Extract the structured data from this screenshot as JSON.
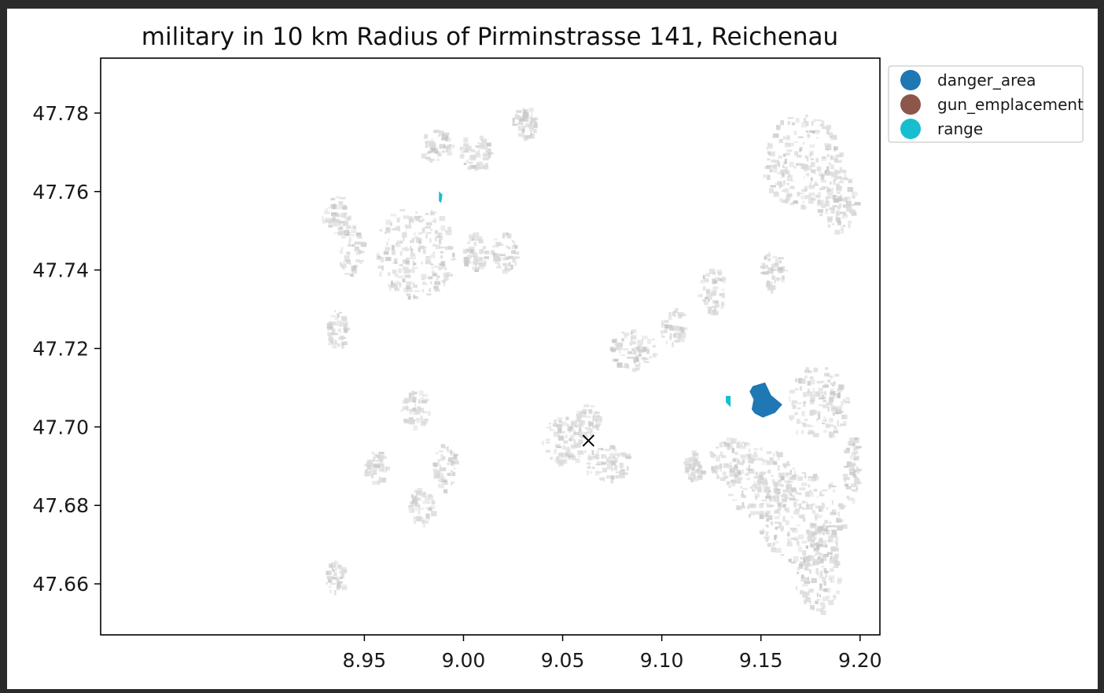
{
  "map": {
    "title": "military in 10 km Radius of Pirminstrasse 141, Reichenau",
    "type": "geographic map (scatter of polygons)",
    "x_axis": {
      "range": [
        8.817,
        9.21
      ],
      "ticks": [
        {
          "value": 8.95,
          "label": "8.95"
        },
        {
          "value": 9.0,
          "label": "9.00"
        },
        {
          "value": 9.05,
          "label": "9.05"
        },
        {
          "value": 9.1,
          "label": "9.10"
        },
        {
          "value": 9.15,
          "label": "9.15"
        },
        {
          "value": 9.2,
          "label": "9.20"
        }
      ]
    },
    "y_axis": {
      "range": [
        47.647,
        47.794
      ],
      "ticks": [
        {
          "value": 47.66,
          "label": "47.66"
        },
        {
          "value": 47.68,
          "label": "47.68"
        },
        {
          "value": 47.7,
          "label": "47.70"
        },
        {
          "value": 47.72,
          "label": "47.72"
        },
        {
          "value": 47.74,
          "label": "47.74"
        },
        {
          "value": 47.76,
          "label": "47.76"
        },
        {
          "value": 47.78,
          "label": "47.78"
        }
      ]
    },
    "legend": {
      "placement": "outside right, top",
      "items": [
        {
          "label": "danger_area",
          "color": "#1f77b4"
        },
        {
          "label": "gun_emplacement",
          "color": "#8c564b"
        },
        {
          "label": "range",
          "color": "#17becf"
        }
      ]
    },
    "center_marker": {
      "lon": 9.063,
      "lat": 47.6965,
      "symbol": "x",
      "color": "#000000"
    },
    "military_features": [
      {
        "category": "danger_area",
        "color": "#1f77b4",
        "polygon": [
          [
            9.146,
            47.7103
          ],
          [
            9.152,
            47.7112
          ],
          [
            9.155,
            47.708
          ],
          [
            9.1605,
            47.7057
          ],
          [
            9.157,
            47.7037
          ],
          [
            9.151,
            47.7025
          ],
          [
            9.147,
            47.7035
          ],
          [
            9.1455,
            47.7045
          ],
          [
            9.1465,
            47.707
          ],
          [
            9.1445,
            47.709
          ]
        ]
      },
      {
        "category": "range",
        "color": "#17becf",
        "polygon": [
          [
            9.1325,
            47.7078
          ],
          [
            9.1345,
            47.7078
          ],
          [
            9.1345,
            47.7053
          ],
          [
            9.1325,
            47.7063
          ]
        ]
      },
      {
        "category": "range",
        "color": "#17becf",
        "polygon": [
          [
            8.9878,
            47.7598
          ],
          [
            8.9892,
            47.7592
          ],
          [
            8.9886,
            47.7573
          ],
          [
            8.9878,
            47.7576
          ]
        ]
      }
    ],
    "building_areas_color": "#d9d9d9",
    "building_clusters": [
      {
        "lon": 9.051,
        "lat": 47.697,
        "rx": 0.012,
        "ry": 0.006
      },
      {
        "lon": 9.072,
        "lat": 47.691,
        "rx": 0.012,
        "ry": 0.0045
      },
      {
        "lon": 9.062,
        "lat": 47.702,
        "rx": 0.006,
        "ry": 0.004
      },
      {
        "lon": 9.15,
        "lat": 47.686,
        "rx": 0.018,
        "ry": 0.009
      },
      {
        "lon": 9.17,
        "lat": 47.677,
        "rx": 0.022,
        "ry": 0.012
      },
      {
        "lon": 9.178,
        "lat": 47.665,
        "rx": 0.012,
        "ry": 0.012
      },
      {
        "lon": 9.135,
        "lat": 47.692,
        "rx": 0.012,
        "ry": 0.006
      },
      {
        "lon": 9.178,
        "lat": 47.706,
        "rx": 0.015,
        "ry": 0.01
      },
      {
        "lon": 8.975,
        "lat": 47.745,
        "rx": 0.02,
        "ry": 0.012
      },
      {
        "lon": 8.943,
        "lat": 47.745,
        "rx": 0.006,
        "ry": 0.007
      },
      {
        "lon": 8.935,
        "lat": 47.754,
        "rx": 0.007,
        "ry": 0.005
      },
      {
        "lon": 9.005,
        "lat": 47.745,
        "rx": 0.006,
        "ry": 0.005
      },
      {
        "lon": 9.17,
        "lat": 47.768,
        "rx": 0.02,
        "ry": 0.012
      },
      {
        "lon": 9.188,
        "lat": 47.758,
        "rx": 0.01,
        "ry": 0.008
      },
      {
        "lon": 9.005,
        "lat": 47.77,
        "rx": 0.008,
        "ry": 0.005
      },
      {
        "lon": 9.02,
        "lat": 47.745,
        "rx": 0.007,
        "ry": 0.005
      },
      {
        "lon": 9.085,
        "lat": 47.72,
        "rx": 0.012,
        "ry": 0.005
      },
      {
        "lon": 9.125,
        "lat": 47.735,
        "rx": 0.007,
        "ry": 0.006
      },
      {
        "lon": 9.155,
        "lat": 47.74,
        "rx": 0.006,
        "ry": 0.005
      },
      {
        "lon": 8.99,
        "lat": 47.69,
        "rx": 0.006,
        "ry": 0.006
      },
      {
        "lon": 8.975,
        "lat": 47.705,
        "rx": 0.007,
        "ry": 0.005
      },
      {
        "lon": 8.978,
        "lat": 47.68,
        "rx": 0.006,
        "ry": 0.005
      },
      {
        "lon": 8.935,
        "lat": 47.725,
        "rx": 0.005,
        "ry": 0.005
      },
      {
        "lon": 8.935,
        "lat": 47.662,
        "rx": 0.005,
        "ry": 0.004
      },
      {
        "lon": 8.955,
        "lat": 47.69,
        "rx": 0.006,
        "ry": 0.004
      },
      {
        "lon": 9.195,
        "lat": 47.69,
        "rx": 0.004,
        "ry": 0.009
      },
      {
        "lon": 9.115,
        "lat": 47.69,
        "rx": 0.005,
        "ry": 0.004
      },
      {
        "lon": 9.03,
        "lat": 47.778,
        "rx": 0.006,
        "ry": 0.004
      },
      {
        "lon": 8.985,
        "lat": 47.772,
        "rx": 0.008,
        "ry": 0.004
      },
      {
        "lon": 9.105,
        "lat": 47.726,
        "rx": 0.006,
        "ry": 0.005
      }
    ]
  }
}
